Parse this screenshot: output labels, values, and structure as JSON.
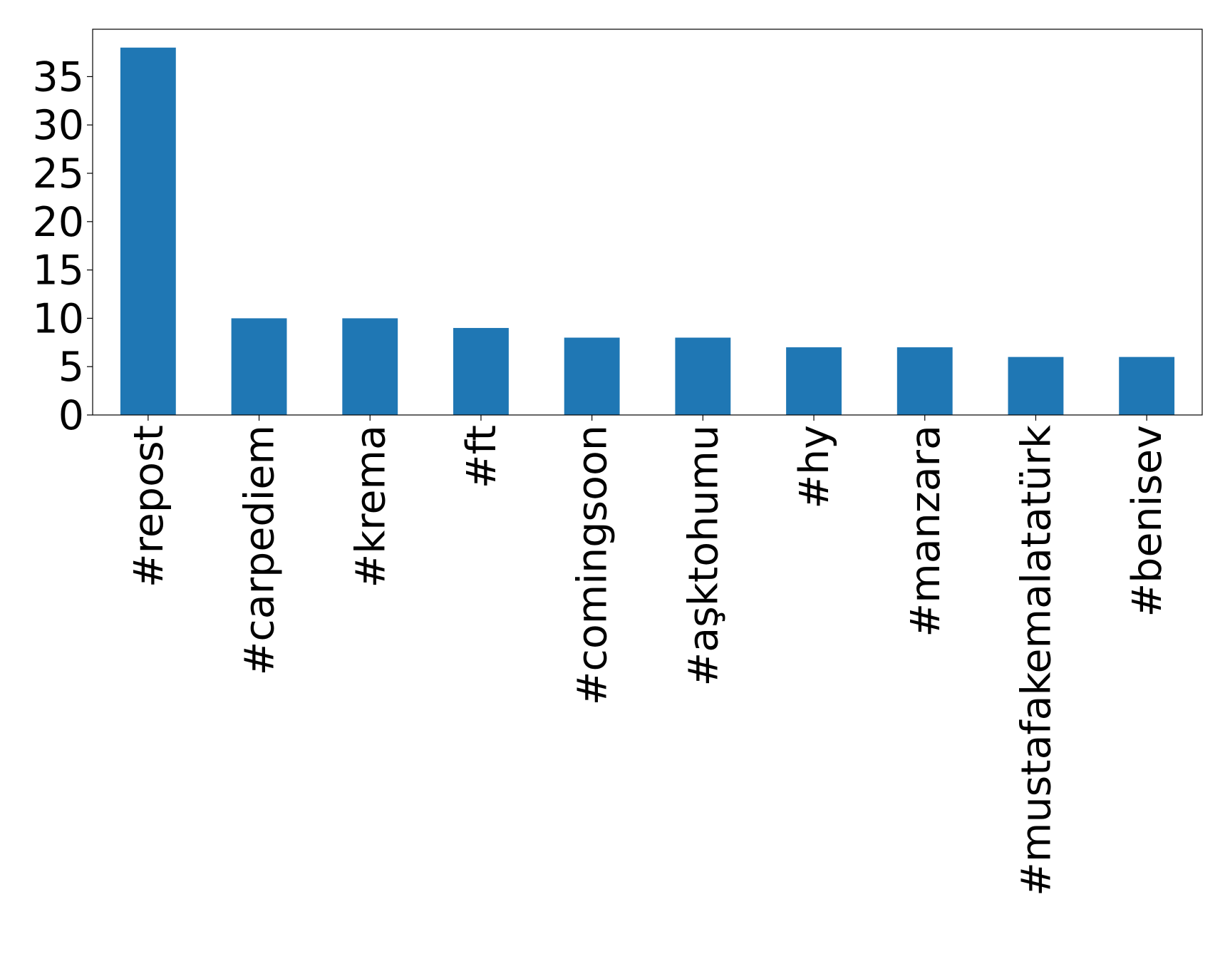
{
  "chart_data": {
    "type": "bar",
    "categories": [
      "#repost",
      "#carpediem",
      "#krema",
      "#ft",
      "#comingsoon",
      "#aşktohumu",
      "#hy",
      "#manzara",
      "#mustafakemalatatürk",
      "#benisev"
    ],
    "values": [
      38,
      10,
      10,
      9,
      8,
      8,
      7,
      7,
      6,
      6
    ],
    "color": "#1f77b4",
    "ylim": [
      0,
      39.9
    ],
    "yticks": [
      0,
      5,
      10,
      15,
      20,
      25,
      30,
      35
    ],
    "grid": false
  }
}
